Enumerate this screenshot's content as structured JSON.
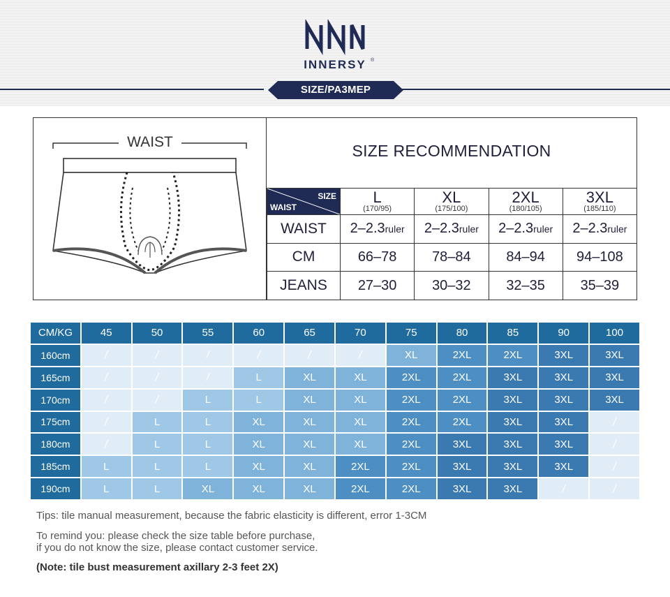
{
  "header": {
    "brand": "INNERSY",
    "brand_mark": "®",
    "size_tag": "SIZE/PA3MEP"
  },
  "recommendation": {
    "illustration_label": "WAIST",
    "title": "SIZE RECOMMENDATION",
    "corner_top": "SIZE",
    "corner_bottom": "WAIST",
    "sizes": [
      {
        "name": "L",
        "range": "(170/95)"
      },
      {
        "name": "XL",
        "range": "(175/100)"
      },
      {
        "name": "2XL",
        "range": "(180/105)"
      },
      {
        "name": "3XL",
        "range": "(185/110)"
      }
    ],
    "rows": [
      {
        "label": "WAIST",
        "values": [
          "2–2.3",
          "2–2.3",
          "2–2.3",
          "2–2.3"
        ],
        "unit": "ruler"
      },
      {
        "label": "CM",
        "values": [
          "66–78",
          "78–84",
          "84–94",
          "94–108"
        ]
      },
      {
        "label": "JEANS",
        "values": [
          "27–30",
          "30–32",
          "32–35",
          "35–39"
        ]
      }
    ]
  },
  "grid": {
    "corner": "CM/KG",
    "weights": [
      "45",
      "50",
      "55",
      "60",
      "65",
      "70",
      "75",
      "80",
      "85",
      "90",
      "100"
    ],
    "rows": [
      {
        "height": "160cm",
        "cells": [
          "/",
          "/",
          "/",
          "/",
          "/",
          "/",
          "XL",
          "2XL",
          "2XL",
          "3XL",
          "3XL"
        ]
      },
      {
        "height": "165cm",
        "cells": [
          "/",
          "/",
          "/",
          "L",
          "XL",
          "XL",
          "2XL",
          "2XL",
          "3XL",
          "3XL",
          "3XL"
        ]
      },
      {
        "height": "170cm",
        "cells": [
          "/",
          "/",
          "L",
          "L",
          "XL",
          "XL",
          "2XL",
          "2XL",
          "3XL",
          "3XL",
          "3XL"
        ]
      },
      {
        "height": "175cm",
        "cells": [
          "/",
          "L",
          "L",
          "XL",
          "XL",
          "XL",
          "2XL",
          "2XL",
          "3XL",
          "3XL",
          "/"
        ]
      },
      {
        "height": "180cm",
        "cells": [
          "/",
          "L",
          "L",
          "XL",
          "XL",
          "XL",
          "2XL",
          "3XL",
          "3XL",
          "3XL",
          "/"
        ]
      },
      {
        "height": "185cm",
        "cells": [
          "L",
          "L",
          "L",
          "XL",
          "XL",
          "2XL",
          "2XL",
          "3XL",
          "3XL",
          "3XL",
          "/"
        ]
      },
      {
        "height": "190cm",
        "cells": [
          "L",
          "L",
          "XL",
          "XL",
          "XL",
          "2XL",
          "2XL",
          "3XL",
          "3XL",
          "/",
          "/"
        ]
      }
    ],
    "colors": {
      "header": "#1f6b9e",
      "corner": "#1f2a55",
      "empty": "#dbe9f5",
      "light": "#b9d6ec",
      "L": "#9ec8e6",
      "XL": "#7fb3da",
      "2XL": "#4d8fc2",
      "3XL": "#3a7ab0"
    }
  },
  "notes": {
    "tip": "Tips: tile manual measurement, because the fabric elasticity is different, error 1-3CM",
    "remind_1": "To remind you: please check the size table before purchase,",
    "remind_2": "if you do not know the size, please contact customer service.",
    "note": "(Note: tile bust measurement axillary 2-3 feet 2X)"
  }
}
